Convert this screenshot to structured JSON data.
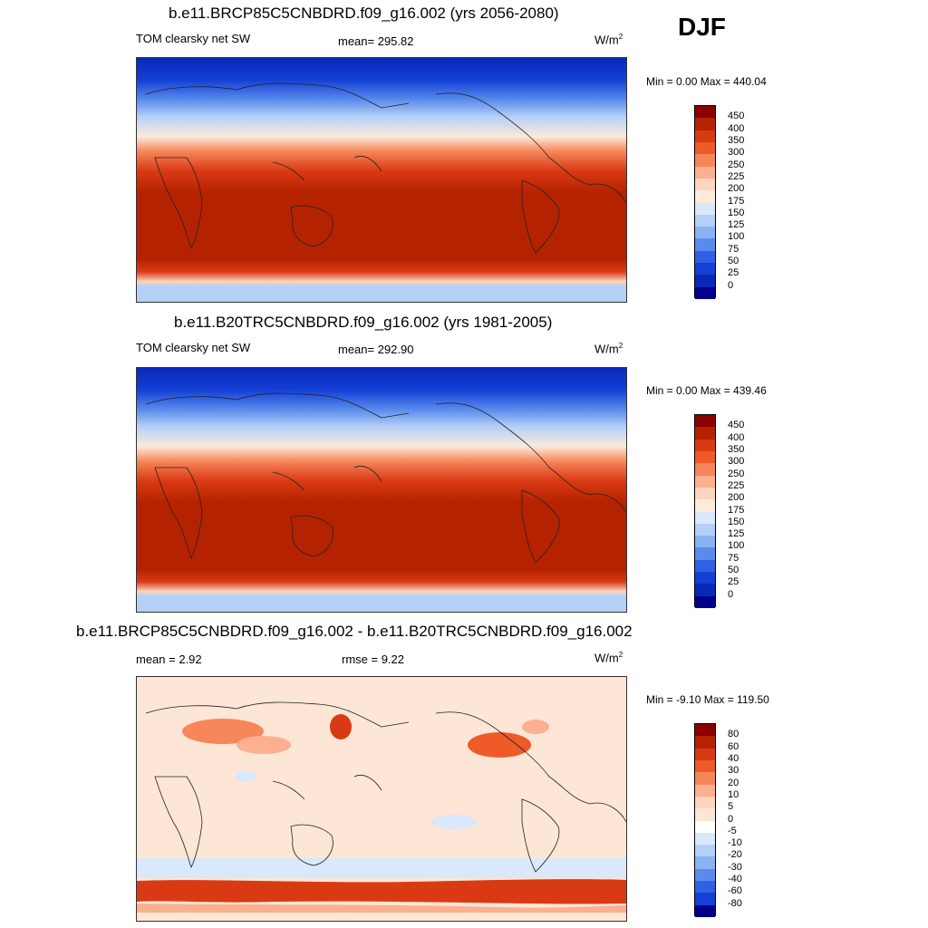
{
  "season": "DJF",
  "panels": [
    {
      "title": "b.e11.BRCP85C5CNBDRD.f09_g16.002 (yrs 2056-2080)",
      "left_label": "TOM clearsky net SW",
      "mid_label": "mean= 295.82",
      "unit": "W/m",
      "unit_sup": "2",
      "minmax": "Min =   0.00 Max = 440.04",
      "map_kind": "absolute"
    },
    {
      "title": "b.e11.B20TRC5CNBDRD.f09_g16.002 (yrs 1981-2005)",
      "left_label": "TOM clearsky net SW",
      "mid_label": "mean= 292.90",
      "unit": "W/m",
      "unit_sup": "2",
      "minmax": "Min =   0.00 Max = 439.46",
      "map_kind": "absolute"
    },
    {
      "title": "b.e11.BRCP85C5CNBDRD.f09_g16.002 - b.e11.B20TRC5CNBDRD.f09_g16.002",
      "left_label": "mean =   2.92",
      "mid_label": "rmse =   9.22",
      "unit": "W/m",
      "unit_sup": "2",
      "minmax": "Min =  -9.10 Max = 119.50",
      "map_kind": "difference"
    }
  ],
  "colorbars": {
    "absolute": {
      "ticks": [
        "450",
        "400",
        "350",
        "300",
        "250",
        "225",
        "200",
        "175",
        "150",
        "125",
        "100",
        "75",
        "50",
        "25",
        "0"
      ],
      "colors": [
        "#8b0000",
        "#b52200",
        "#d93a14",
        "#ee5a28",
        "#f7865a",
        "#fbb08f",
        "#fdd4bd",
        "#fdeadb",
        "#d9e8fb",
        "#b5d0f7",
        "#8ab2f2",
        "#5a8bec",
        "#2f62e3",
        "#1440d6",
        "#0a28b8",
        "#00008b"
      ]
    },
    "difference": {
      "ticks": [
        "80",
        "60",
        "40",
        "30",
        "20",
        "10",
        "5",
        "0",
        "-5",
        "-10",
        "-20",
        "-30",
        "-40",
        "-60",
        "-80"
      ],
      "colors": [
        "#8b0000",
        "#b52200",
        "#d93a14",
        "#ee5a28",
        "#f7865a",
        "#fbb08f",
        "#fdd4bd",
        "#fde6d5",
        "#ffffff",
        "#d9e8fb",
        "#b5d0f7",
        "#8ab2f2",
        "#5a8bec",
        "#2f62e3",
        "#1440d6",
        "#00008b"
      ]
    }
  }
}
